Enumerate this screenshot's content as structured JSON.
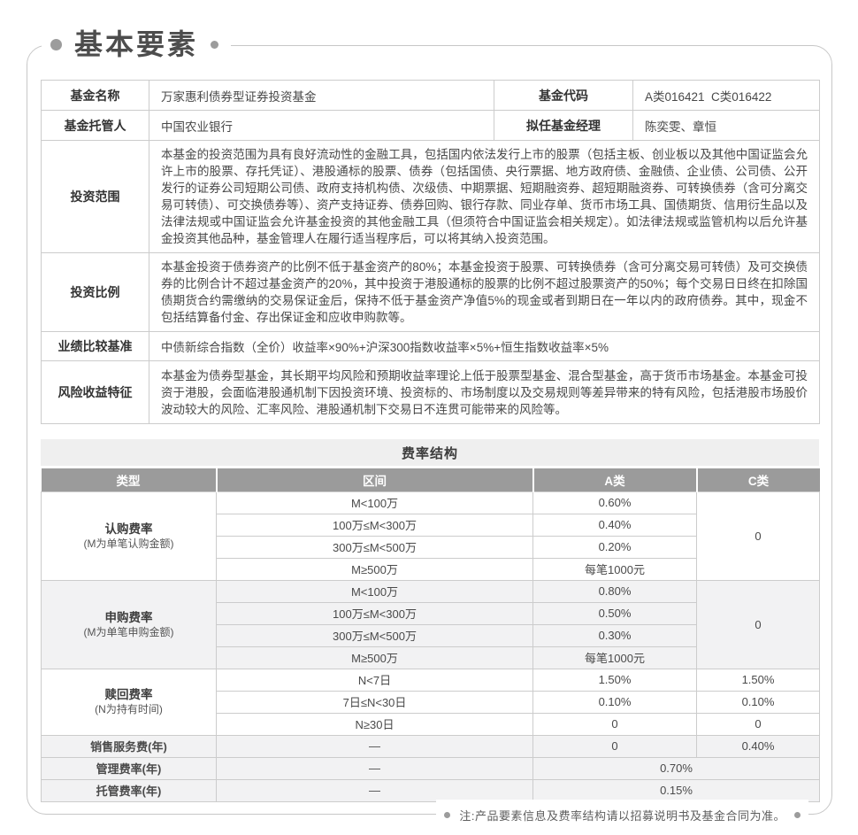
{
  "page_title": "基本要素",
  "footer_note": "注:产品要素信息及费率结构请以招募说明书及基金合同为准。",
  "colors": {
    "accent_gray": "#9b9b9b",
    "band_shade": "#f2f2f3",
    "border": "#cccccc",
    "title_bar": "#efefef"
  },
  "info": {
    "name_label": "基金名称",
    "name_value": "万家惠利债券型证券投资基金",
    "code_label": "基金代码",
    "code_value": "A类016421  C类016422",
    "custodian_label": "基金托管人",
    "custodian_value": "中国农业银行",
    "manager_label": "拟任基金经理",
    "manager_value": "陈奕雯、章恒",
    "scope_label": "投资范围",
    "scope_text": "本基金的投资范围为具有良好流动性的金融工具，包括国内依法发行上市的股票（包括主板、创业板以及其他中国证监会允许上市的股票、存托凭证）、港股通标的股票、债券（包括国债、央行票据、地方政府债、金融债、企业债、公司债、公开发行的证券公司短期公司债、政府支持机构债、次级债、中期票据、短期融资券、超短期融资券、可转换债券（含可分离交易可转债）、可交换债券等）、资产支持证券、债券回购、银行存款、同业存单、货币市场工具、国债期货、信用衍生品以及法律法规或中国证监会允许基金投资的其他金融工具（但须符合中国证监会相关规定）。如法律法规或监管机构以后允许基金投资其他品种，基金管理人在履行适当程序后，可以将其纳入投资范围。",
    "ratio_label": "投资比例",
    "ratio_text": "本基金投资于债券资产的比例不低于基金资产的80%；本基金投资于股票、可转换债券（含可分离交易可转债）及可交换债券的比例合计不超过基金资产的20%，其中投资于港股通标的股票的比例不超过股票资产的50%；每个交易日日终在扣除国债期货合约需缴纳的交易保证金后，保持不低于基金资产净值5%的现金或者到期日在一年以内的政府债券。其中，现金不包括结算备付金、存出保证金和应收申购款等。",
    "benchmark_label": "业绩比较基准",
    "benchmark_text": "中债新综合指数（全价）收益率×90%+沪深300指数收益率×5%+恒生指数收益率×5%",
    "risk_label": "风险收益特征",
    "risk_text": "本基金为债券型基金，其长期平均风险和预期收益率理论上低于股票型基金、混合型基金，高于货币市场基金。本基金可投资于港股，会面临港股通机制下因投资环境、投资标的、市场制度以及交易规则等差异带来的特有风险，包括港股市场股价波动较大的风险、汇率风险、港股通机制下交易日不连贯可能带来的风险等。"
  },
  "fee": {
    "title": "费率结构",
    "headers": [
      "类型",
      "区间",
      "A类",
      "C类"
    ],
    "groups": [
      {
        "name": "认购费率",
        "sub": "(M为单笔认购金额)",
        "shaded": false,
        "c_merged": "0",
        "rows": [
          [
            "M<100万",
            "0.60%"
          ],
          [
            "100万≤M<300万",
            "0.40%"
          ],
          [
            "300万≤M<500万",
            "0.20%"
          ],
          [
            "M≥500万",
            "每笔1000元"
          ]
        ]
      },
      {
        "name": "申购费率",
        "sub": "(M为单笔申购金额)",
        "shaded": true,
        "c_merged": "0",
        "rows": [
          [
            "M<100万",
            "0.80%"
          ],
          [
            "100万≤M<300万",
            "0.50%"
          ],
          [
            "300万≤M<500万",
            "0.30%"
          ],
          [
            "M≥500万",
            "每笔1000元"
          ]
        ]
      },
      {
        "name": "赎回费率",
        "sub": "(N为持有时间)",
        "shaded": false,
        "rows": [
          [
            "N<7日",
            "1.50%",
            "1.50%"
          ],
          [
            "7日≤N<30日",
            "0.10%",
            "0.10%"
          ],
          [
            "N≥30日",
            "0",
            "0"
          ]
        ]
      }
    ],
    "single_rows": [
      {
        "label": "销售服务费(年)",
        "range": "—",
        "a": "0",
        "c": "0.40%",
        "shaded": true
      },
      {
        "label": "管理费率(年)",
        "range": "—",
        "ac": "0.70%",
        "shaded": true
      },
      {
        "label": "托管费率(年)",
        "range": "—",
        "ac": "0.15%",
        "shaded": true
      }
    ]
  }
}
